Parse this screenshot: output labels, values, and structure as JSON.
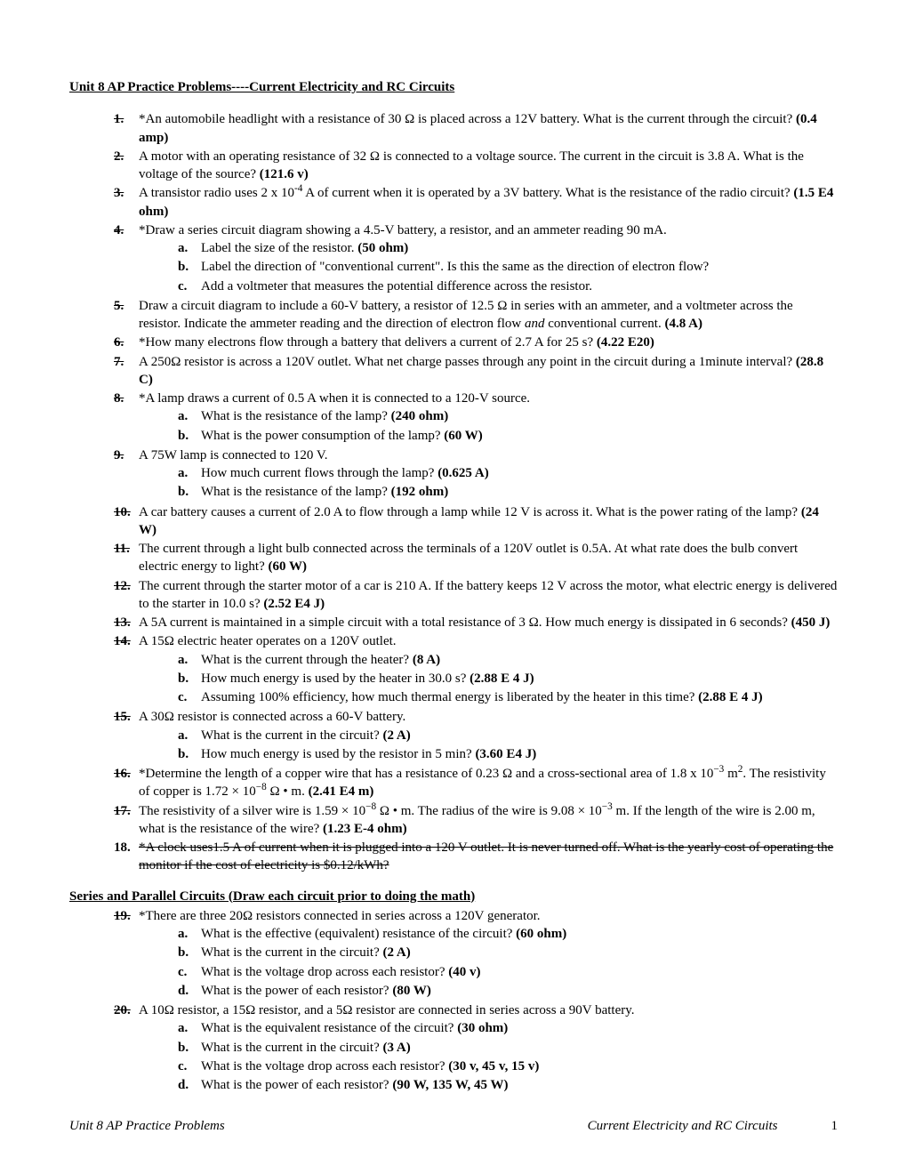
{
  "title": "Unit 8 AP Practice Problems----Current Electricity and RC Circuits",
  "problems": [
    {
      "n": "1.",
      "strike": true,
      "text": "*An automobile headlight with a resistance of 30 Ω is placed across a 12V battery.  What is the current through the circuit? ",
      "ans": "(0.4 amp)"
    },
    {
      "n": "2.",
      "strike": true,
      "text": "A motor with an operating resistance of 32 Ω is connected to a voltage source.  The current in the circuit is 3.8 A.  What is the voltage of the source?  ",
      "ans": "(121.6 v)"
    },
    {
      "n": "3.",
      "strike": true,
      "text": "A transistor radio uses 2 x 10<sup>-4</sup> A of current when it is operated by a 3V battery.  What is the resistance of the radio circuit? ",
      "ans": "(1.5 E4 ohm)"
    },
    {
      "n": "4.",
      "strike": true,
      "text": "*Draw a series circuit diagram showing a 4.5-V battery, a resistor, and an ammeter reading 90 mA.",
      "subs": [
        {
          "l": "a.",
          "text": "Label the size of the resistor.  ",
          "ans": "(50 ohm)"
        },
        {
          "l": "b.",
          "text": "Label the direction of \"conventional current\".  Is this the same as the direction of electron flow?"
        },
        {
          "l": "c.",
          "text": "Add a voltmeter that measures the potential difference across the resistor."
        }
      ]
    },
    {
      "n": "5.",
      "strike": true,
      "text": "Draw a circuit diagram to include a 60-V battery, a resistor of 12.5 Ω in series with an ammeter, and a voltmeter across the resistor.  Indicate the ammeter reading and the direction of electron flow <i>and</i> conventional current.  ",
      "ans": "(4.8 A)"
    },
    {
      "n": "6.",
      "strike": true,
      "text": "*How many electrons flow through a battery that delivers a current of 2.7 A for 25 s? ",
      "ans": "(4.22 E20)"
    },
    {
      "n": "7.",
      "strike": true,
      "text": "A 250Ω resistor is across a 120V outlet.  What net charge passes through any point in the circuit during a 1minute interval?  ",
      "ans": "(28.8 C)"
    },
    {
      "n": "8.",
      "strike": true,
      "text": "*A lamp draws a current of 0.5 A when it is connected to a 120-V source.",
      "subs": [
        {
          "l": "a.",
          "text": "What is the resistance of the lamp?  ",
          "ans": "(240 ohm)"
        },
        {
          "l": "b.",
          "text": "What is the power consumption of the lamp?  ",
          "ans": "(60 W)"
        }
      ]
    },
    {
      "n": "9.",
      "strike": true,
      "text": "A 75W lamp is connected to 120 V.",
      "subs": [
        {
          "l": "a.",
          "text": "How much current flows through the lamp?  ",
          "ans": "(0.625 A)"
        },
        {
          "l": "b.",
          "text": "What is the resistance of the lamp? ",
          "ans": "(192 ohm)"
        }
      ]
    },
    {
      "n": "10.",
      "strike": true,
      "text": "A car battery causes a current of 2.0 A to flow through a lamp while 12 V is across it.  What is the power rating of the lamp?  ",
      "ans": "(24 W)"
    },
    {
      "n": "11.",
      "strike": true,
      "text": "The current through a light bulb connected across the terminals of a 120V outlet is 0.5A.  At what rate does the bulb convert electric energy to light?  ",
      "ans": "(60 W)"
    },
    {
      "n": "12.",
      "strike": true,
      "text": "The current through the starter motor of a car is 210 A.  If the battery keeps 12 V across the motor, what electric energy is delivered to the starter in 10.0 s?  ",
      "ans": "(2.52 E4 J)"
    },
    {
      "n": "13.",
      "strike": true,
      "text": "A 5A current is maintained in a simple circuit with a total resistance of 3 Ω.  How much energy is dissipated in 6 seconds? ",
      "ans": "(450 J)"
    },
    {
      "n": "14.",
      "strike": true,
      "text": "A 15Ω electric heater operates on a 120V outlet.",
      "subs": [
        {
          "l": "a.",
          "text": "What is the current through the heater?  ",
          "ans": "(8 A)"
        },
        {
          "l": "b.",
          "text": "How much energy is used by the heater in 30.0 s?  ",
          "ans": "(2.88 E 4 J)"
        },
        {
          "l": "c.",
          "text": "Assuming 100% efficiency, how much thermal energy is liberated by the heater in this time? ",
          "ans": "(2.88 E 4 J)"
        }
      ]
    },
    {
      "n": "15.",
      "strike": true,
      "text": "A 30Ω resistor is connected across a 60-V battery.",
      "subs": [
        {
          "l": "a.",
          "text": "What is the current in the circuit? ",
          "ans": "(2 A)"
        },
        {
          "l": "b.",
          "text": "How much energy is used by the resistor in 5 min?  ",
          "ans": "(3.60 E4 J)"
        }
      ]
    },
    {
      "n": "16.",
      "strike": true,
      "text": "*Determine the length of a copper wire that has a resistance of 0.23 Ω and a cross-sectional area of 1.8 x 10<sup>−3</sup> m<sup>2</sup>.  The resistivity of copper is 1.72 × 10<sup>−8</sup> Ω • m.   ",
      "ans": "(2.41 E4 m)"
    },
    {
      "n": "17.",
      "strike": true,
      "text": "The resistivity of a silver wire is 1.59 × 10<sup>−8</sup> Ω • m.  The radius of the wire is 9.08 × 10<sup>−3</sup> m.  If the length of the wire is 2.00 m, what is the resistance of the wire?  ",
      "ans": "(1.23 E-4 ohm)"
    },
    {
      "n": "18.",
      "strike": false,
      "text": "<span class=\"strike\">*A clock uses1.5 A of current when it is plugged into a 120 V outlet.  It is never turned off.  What is the yearly cost of operating the monitor if the cost of electricity is $0.12/kWh?</span>"
    }
  ],
  "section2_title": "Series and Parallel Circuits (Draw each circuit prior to doing the math)",
  "problems2": [
    {
      "n": "19.",
      "strike": true,
      "text": "*There are three 20Ω resistors connected in series across a 120V generator.",
      "subs": [
        {
          "l": "a.",
          "text": "What is the effective (equivalent) resistance of the circuit?  ",
          "ans": "(60 ohm)"
        },
        {
          "l": "b.",
          "text": "What is the current in the circuit?  ",
          "ans": "(2 A)"
        },
        {
          "l": "c.",
          "text": "What is the voltage drop across each resistor?  ",
          "ans": "(40 v)"
        },
        {
          "l": "d.",
          "text": "What is the power of each resistor?  ",
          "ans": "(80 W)"
        }
      ]
    },
    {
      "n": "20.",
      "strike": true,
      "text": "A 10Ω resistor, a 15Ω resistor, and a 5Ω resistor are connected in series across a 90V battery.",
      "subs": [
        {
          "l": "a.",
          "text": "What is the equivalent resistance of the circuit?  ",
          "ans": "(30 ohm)"
        },
        {
          "l": "b.",
          "text": "What is the current in the circuit?  ",
          "ans": "(3 A)"
        },
        {
          "l": "c.",
          "text": "What is the voltage drop across each resistor?  ",
          "ans": "(30 v, 45 v, 15 v)"
        },
        {
          "l": "d.",
          "text": "What is the power of each resistor?  ",
          "ans": "(90 W, 135 W, 45 W)"
        }
      ]
    }
  ],
  "footer_left": "Unit 8 AP Practice Problems",
  "footer_center": "Current Electricity and RC Circuits",
  "page_number": "1"
}
